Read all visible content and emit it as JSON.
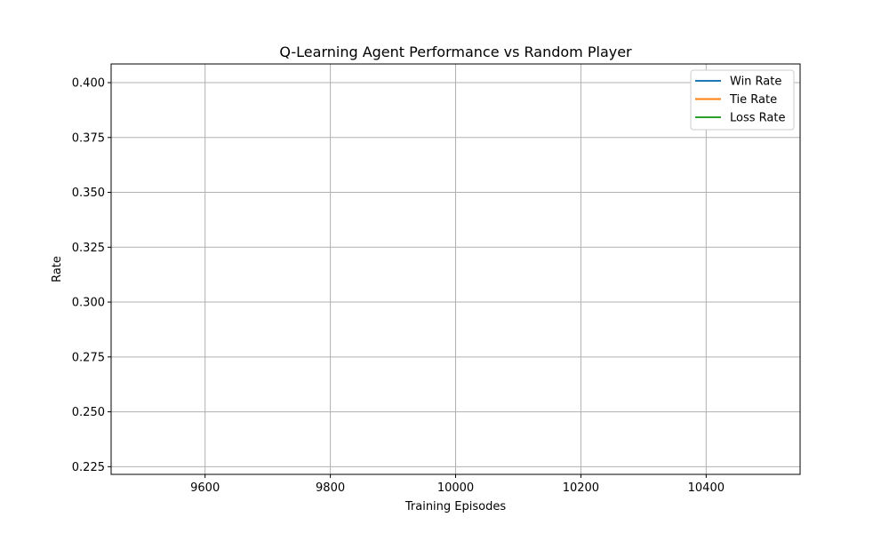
{
  "chart_data": {
    "type": "line",
    "title": "Q-Learning Agent Performance vs Random Player",
    "xlabel": "Training Episodes",
    "ylabel": "Rate",
    "xlim": [
      9450,
      10550
    ],
    "ylim": [
      0.2215,
      0.4085
    ],
    "xticks": [
      9600,
      9800,
      10000,
      10200,
      10400
    ],
    "yticks": [
      0.225,
      0.25,
      0.275,
      0.3,
      0.325,
      0.35,
      0.375,
      0.4
    ],
    "ytick_labels": [
      "0.225",
      "0.250",
      "0.275",
      "0.300",
      "0.325",
      "0.350",
      "0.375",
      "0.400"
    ],
    "grid": true,
    "legend_position": "top-right",
    "series": [
      {
        "name": "Win Rate",
        "color": "#1f77b4",
        "x": [],
        "y": []
      },
      {
        "name": "Tie Rate",
        "color": "#ff7f0e",
        "x": [],
        "y": []
      },
      {
        "name": "Loss Rate",
        "color": "#2ca02c",
        "x": [],
        "y": []
      }
    ]
  }
}
